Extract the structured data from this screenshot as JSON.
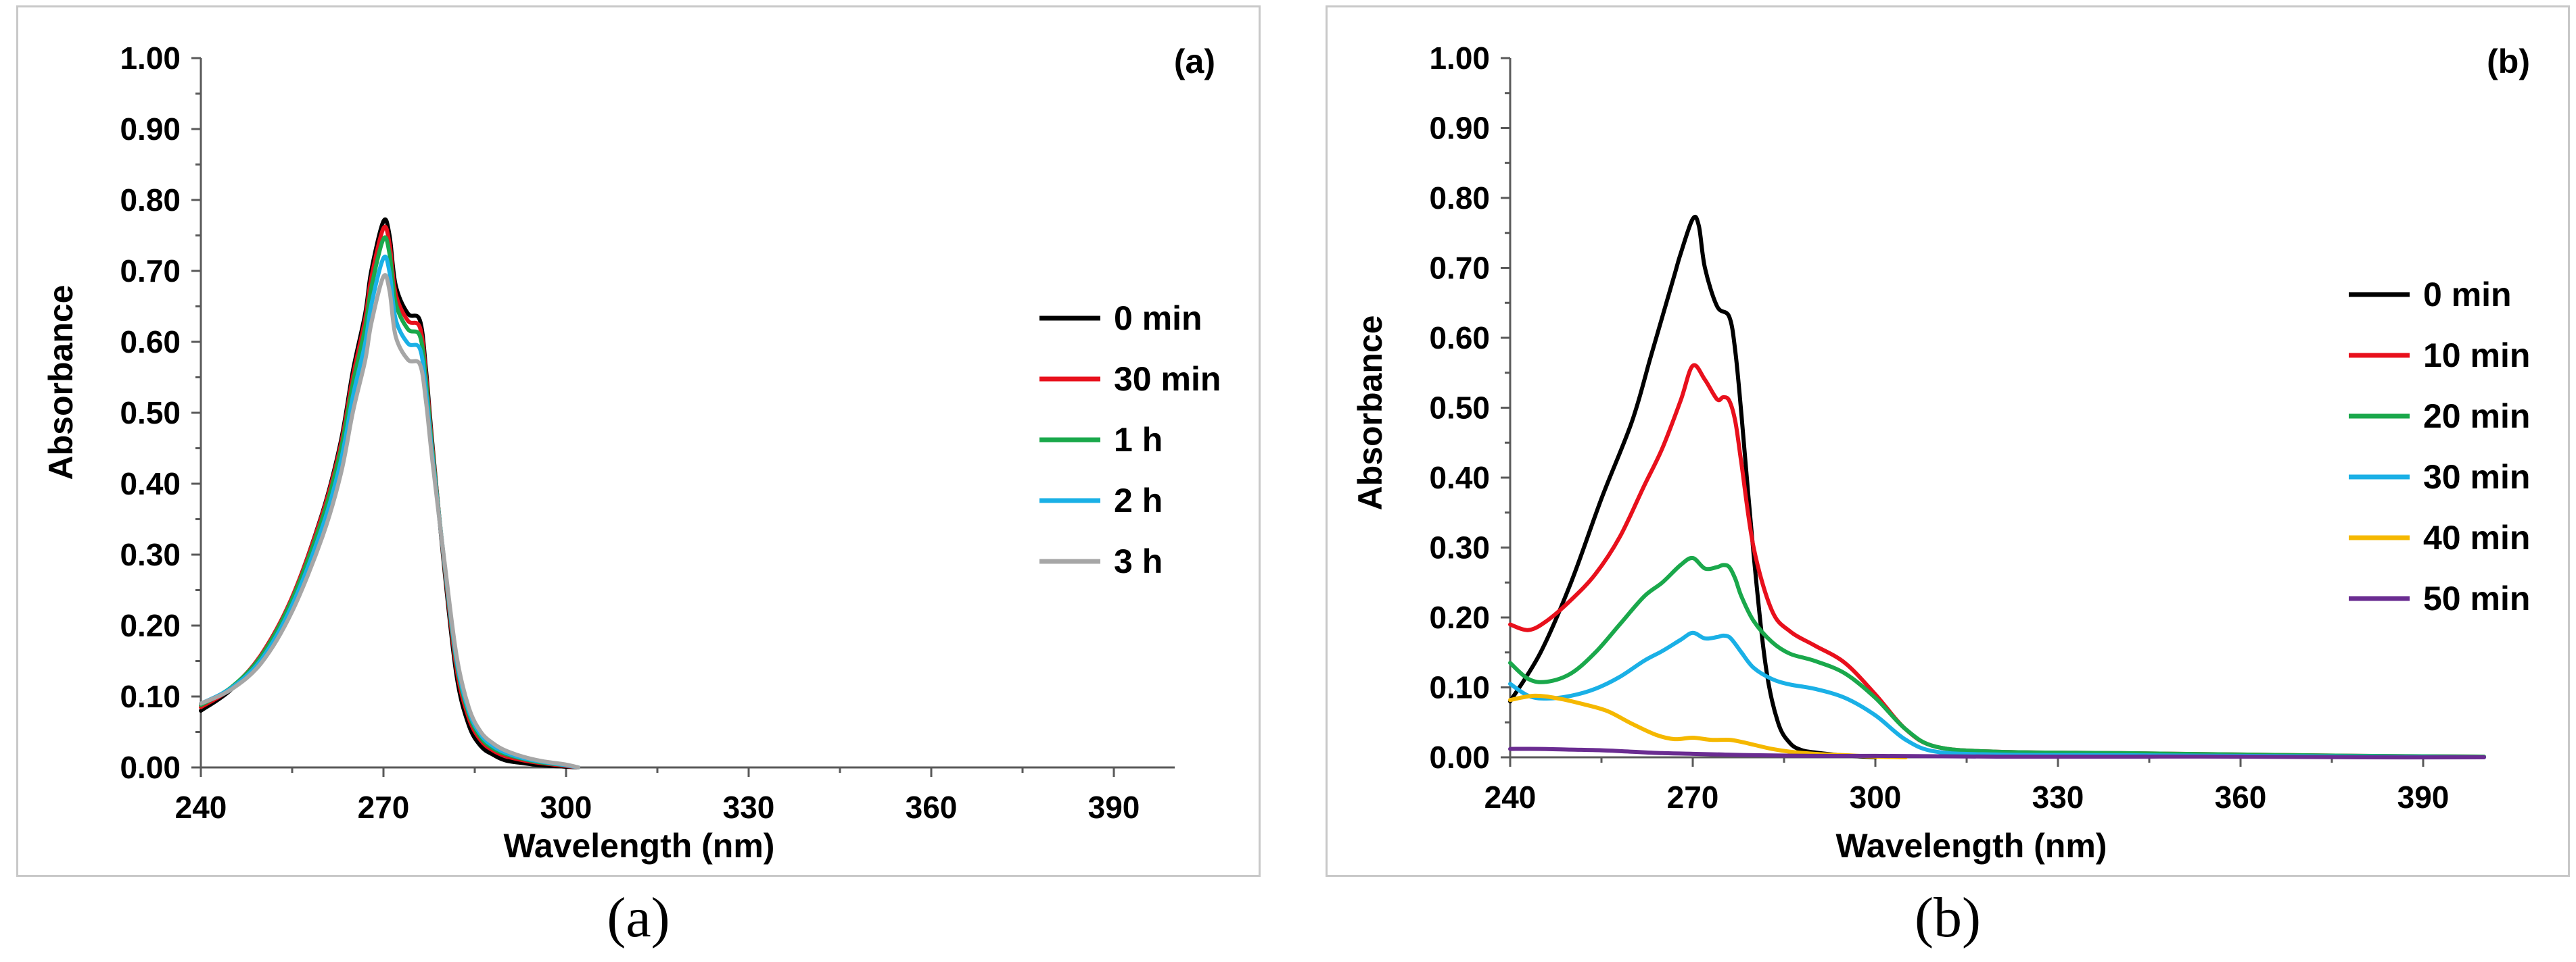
{
  "chart_data": [
    {
      "type": "line",
      "panel_tag": "(a)",
      "caption": "(a)",
      "xlabel": "Wavelength (nm)",
      "ylabel": "Absorbance",
      "xlim": [
        240,
        400
      ],
      "ylim": [
        0,
        1
      ],
      "xticks": [
        "240",
        "270",
        "300",
        "330",
        "360",
        "390"
      ],
      "yticks": [
        "0.00",
        "0.10",
        "0.20",
        "0.30",
        "0.40",
        "0.50",
        "0.60",
        "0.70",
        "0.80",
        "0.90",
        "1.00"
      ],
      "legend_position": "right",
      "series": [
        {
          "name": "0 min",
          "color": "#000000",
          "x": [
            240,
            245,
            250,
            255,
            260,
            263,
            265,
            267,
            268,
            270,
            271,
            272,
            274,
            276,
            277,
            278,
            280,
            282,
            284,
            286,
            288,
            290,
            293,
            296,
            300,
            302
          ],
          "y": [
            0.08,
            0.11,
            0.16,
            0.24,
            0.36,
            0.46,
            0.56,
            0.64,
            0.7,
            0.77,
            0.75,
            0.68,
            0.64,
            0.63,
            0.56,
            0.46,
            0.28,
            0.13,
            0.06,
            0.03,
            0.018,
            0.01,
            0.006,
            0.003,
            0.001,
            0.0
          ]
        },
        {
          "name": "30 min",
          "color": "#e8101c",
          "x": [
            240,
            245,
            250,
            255,
            260,
            263,
            265,
            267,
            268,
            270,
            271,
            272,
            274,
            276,
            277,
            278,
            280,
            282,
            284,
            286,
            288,
            290,
            293,
            296,
            300,
            302
          ],
          "y": [
            0.085,
            0.112,
            0.16,
            0.24,
            0.358,
            0.455,
            0.552,
            0.632,
            0.69,
            0.76,
            0.738,
            0.668,
            0.63,
            0.62,
            0.552,
            0.455,
            0.285,
            0.14,
            0.07,
            0.038,
            0.024,
            0.016,
            0.01,
            0.006,
            0.002,
            0.0
          ]
        },
        {
          "name": "1 h",
          "color": "#1aa84b",
          "x": [
            240,
            245,
            250,
            255,
            260,
            263,
            265,
            267,
            268,
            270,
            271,
            272,
            274,
            276,
            277,
            278,
            280,
            282,
            284,
            286,
            288,
            290,
            293,
            296,
            300,
            302
          ],
          "y": [
            0.088,
            0.113,
            0.158,
            0.237,
            0.352,
            0.448,
            0.542,
            0.62,
            0.676,
            0.745,
            0.724,
            0.655,
            0.618,
            0.608,
            0.544,
            0.45,
            0.288,
            0.148,
            0.076,
            0.042,
            0.027,
            0.019,
            0.012,
            0.007,
            0.003,
            0.0
          ]
        },
        {
          "name": "2 h",
          "color": "#1ab0e6",
          "x": [
            240,
            245,
            250,
            255,
            260,
            263,
            265,
            267,
            268,
            270,
            271,
            272,
            274,
            276,
            277,
            278,
            280,
            282,
            284,
            286,
            288,
            290,
            293,
            296,
            300,
            302
          ],
          "y": [
            0.09,
            0.112,
            0.153,
            0.229,
            0.34,
            0.432,
            0.524,
            0.598,
            0.652,
            0.718,
            0.698,
            0.632,
            0.598,
            0.59,
            0.53,
            0.442,
            0.29,
            0.152,
            0.08,
            0.046,
            0.03,
            0.021,
            0.013,
            0.008,
            0.003,
            0.0
          ]
        },
        {
          "name": "3 h",
          "color": "#a6a6a6",
          "x": [
            240,
            245,
            250,
            255,
            260,
            263,
            265,
            267,
            268,
            270,
            271,
            272,
            274,
            276,
            277,
            278,
            280,
            282,
            284,
            286,
            288,
            290,
            293,
            296,
            300,
            302
          ],
          "y": [
            0.09,
            0.11,
            0.148,
            0.22,
            0.326,
            0.414,
            0.502,
            0.574,
            0.626,
            0.692,
            0.672,
            0.608,
            0.575,
            0.568,
            0.515,
            0.435,
            0.292,
            0.158,
            0.085,
            0.05,
            0.034,
            0.024,
            0.015,
            0.009,
            0.004,
            0.0
          ]
        }
      ]
    },
    {
      "type": "line",
      "panel_tag": "(b)",
      "caption": "(b)",
      "xlabel": "Wavelength (nm)",
      "ylabel": "Absorbance",
      "xlim": [
        240,
        400
      ],
      "ylim": [
        0,
        1
      ],
      "xticks": [
        "240",
        "270",
        "300",
        "330",
        "360",
        "390"
      ],
      "yticks": [
        "0.00",
        "0.10",
        "0.20",
        "0.30",
        "0.40",
        "0.50",
        "0.60",
        "0.70",
        "0.80",
        "0.90",
        "1.00"
      ],
      "legend_position": "right",
      "series": [
        {
          "name": "0 min",
          "color": "#000000",
          "x": [
            240,
            245,
            250,
            255,
            260,
            263,
            265,
            267,
            268,
            270,
            271,
            272,
            274,
            276,
            277,
            278,
            280,
            282,
            284,
            286,
            288,
            290,
            293,
            296,
            300
          ],
          "y": [
            0.08,
            0.15,
            0.25,
            0.37,
            0.48,
            0.57,
            0.63,
            0.69,
            0.72,
            0.77,
            0.76,
            0.7,
            0.645,
            0.63,
            0.58,
            0.49,
            0.29,
            0.13,
            0.05,
            0.02,
            0.01,
            0.007,
            0.004,
            0.002,
            0.0
          ]
        },
        {
          "name": "10 min",
          "color": "#e8101c",
          "x": [
            240,
            243,
            246,
            250,
            254,
            258,
            262,
            265,
            268,
            270,
            272,
            274,
            275,
            276,
            277,
            278,
            280,
            283,
            286,
            290,
            295,
            300,
            305,
            310,
            320,
            340,
            360,
            380,
            400
          ],
          "y": [
            0.19,
            0.182,
            0.195,
            0.225,
            0.262,
            0.315,
            0.388,
            0.442,
            0.51,
            0.56,
            0.54,
            0.512,
            0.515,
            0.51,
            0.48,
            0.42,
            0.3,
            0.21,
            0.18,
            0.16,
            0.135,
            0.09,
            0.04,
            0.015,
            0.008,
            0.006,
            0.004,
            0.002,
            0.001
          ]
        },
        {
          "name": "20 min",
          "color": "#1aa84b",
          "x": [
            240,
            243,
            246,
            250,
            254,
            258,
            262,
            265,
            268,
            270,
            272,
            274,
            275,
            276,
            277,
            278,
            280,
            283,
            286,
            290,
            295,
            300,
            305,
            310,
            320,
            340,
            360,
            380,
            400
          ],
          "y": [
            0.135,
            0.112,
            0.108,
            0.12,
            0.15,
            0.19,
            0.23,
            0.25,
            0.275,
            0.285,
            0.27,
            0.272,
            0.275,
            0.272,
            0.255,
            0.23,
            0.195,
            0.165,
            0.148,
            0.138,
            0.12,
            0.085,
            0.04,
            0.015,
            0.008,
            0.006,
            0.004,
            0.002,
            0.001
          ]
        },
        {
          "name": "30 min",
          "color": "#1ab0e6",
          "x": [
            240,
            243,
            246,
            250,
            254,
            258,
            262,
            265,
            268,
            270,
            272,
            274,
            275,
            276,
            277,
            278,
            280,
            283,
            286,
            290,
            295,
            300,
            305,
            310,
            320,
            340,
            360,
            380,
            400
          ],
          "y": [
            0.105,
            0.088,
            0.084,
            0.088,
            0.098,
            0.115,
            0.138,
            0.152,
            0.168,
            0.178,
            0.17,
            0.172,
            0.174,
            0.172,
            0.162,
            0.15,
            0.128,
            0.112,
            0.104,
            0.098,
            0.085,
            0.06,
            0.025,
            0.008,
            0.004,
            0.003,
            0.002,
            0.001,
            0.0
          ]
        },
        {
          "name": "40 min",
          "color": "#f5b800",
          "x": [
            240,
            244,
            248,
            252,
            256,
            260,
            264,
            267,
            270,
            273,
            276,
            278,
            280,
            283,
            286,
            290,
            295,
            300,
            305
          ],
          "y": [
            0.082,
            0.088,
            0.084,
            0.076,
            0.066,
            0.048,
            0.032,
            0.026,
            0.028,
            0.025,
            0.025,
            0.022,
            0.018,
            0.012,
            0.008,
            0.005,
            0.003,
            0.001,
            0.0
          ]
        },
        {
          "name": "50 min",
          "color": "#6a2c91",
          "x": [
            240,
            245,
            250,
            255,
            260,
            265,
            270,
            275,
            280,
            290,
            300,
            320,
            340,
            360,
            380,
            400
          ],
          "y": [
            0.012,
            0.012,
            0.011,
            0.01,
            0.008,
            0.006,
            0.005,
            0.004,
            0.003,
            0.002,
            0.002,
            0.001,
            0.001,
            0.001,
            0.0,
            0.0
          ]
        }
      ]
    }
  ]
}
